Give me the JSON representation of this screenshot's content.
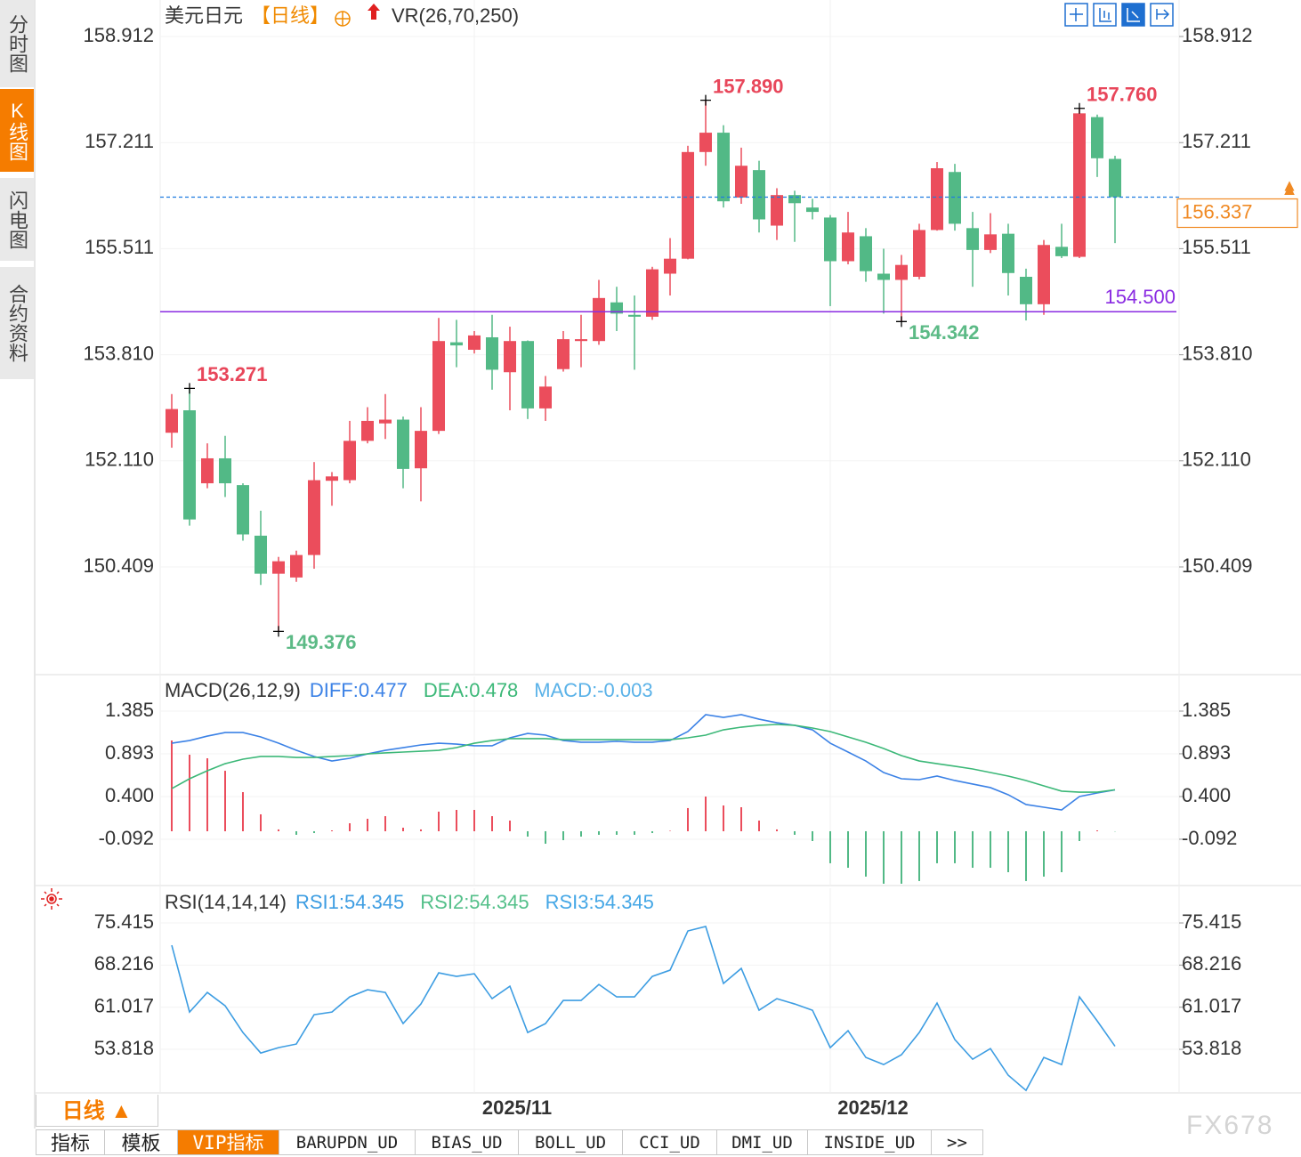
{
  "sidebar": [
    "分时图",
    "K线图",
    "闪电图",
    "合约资料"
  ],
  "header": {
    "title": "美元日元",
    "period": "【日线】",
    "indicator": "VR(26,70,250)"
  },
  "period_button": "日线 ▲",
  "tabs": [
    "指标",
    "模板",
    "VIP指标",
    "BARUPDN_UD",
    "BIAS_UD",
    "BOLL_UD",
    "CCI_UD",
    "DMI_UD",
    "INSIDE_UD",
    ">>"
  ],
  "watermark": "FX678",
  "chart_data": [
    {
      "type": "candlestick",
      "categories": [
        null,
        null,
        null,
        null,
        null,
        null,
        null,
        null,
        null,
        null,
        null,
        null,
        null,
        null,
        null,
        null,
        null,
        "2025/11",
        null,
        null,
        null,
        null,
        null,
        null,
        null,
        null,
        null,
        null,
        null,
        null,
        null,
        null,
        null,
        null,
        null,
        null,
        null,
        "2025/12",
        null,
        null,
        null,
        null,
        null,
        null,
        null,
        null,
        null,
        null,
        null,
        null,
        null,
        null,
        null,
        null
      ],
      "open": [
        152.56,
        152.92,
        151.75,
        152.15,
        151.72,
        150.91,
        150.3,
        150.24,
        150.6,
        151.79,
        151.8,
        152.43,
        152.71,
        152.77,
        151.99,
        152.59,
        154.01,
        153.89,
        154.09,
        153.53,
        154.03,
        152.95,
        153.58,
        154.03,
        154.03,
        154.65,
        154.45,
        154.42,
        155.11,
        155.35,
        157.06,
        157.37,
        156.33,
        156.77,
        155.88,
        156.37,
        156.17,
        156.01,
        155.31,
        155.71,
        155.11,
        155.01,
        155.06,
        155.81,
        156.74,
        155.84,
        155.49,
        155.75,
        155.06,
        154.62,
        155.54,
        155.38,
        157.62,
        156.95
      ],
      "high": [
        153.18,
        153.271,
        152.39,
        152.51,
        151.75,
        151.31,
        150.57,
        150.67,
        152.09,
        151.93,
        152.75,
        152.97,
        153.18,
        152.82,
        152.97,
        154.4,
        154.37,
        154.19,
        154.45,
        154.26,
        154.04,
        153.47,
        154.19,
        154.45,
        155.01,
        154.9,
        154.76,
        155.22,
        155.68,
        157.16,
        157.89,
        157.49,
        157.13,
        156.92,
        156.48,
        156.44,
        156.31,
        156.05,
        156.1,
        155.84,
        155.51,
        155.41,
        155.91,
        156.9,
        156.87,
        156.1,
        156.08,
        155.91,
        155.19,
        155.65,
        155.91,
        157.76,
        157.66,
        157.0
      ],
      "low": [
        152.32,
        151.07,
        151.67,
        151.53,
        150.83,
        150.12,
        149.376,
        150.17,
        150.38,
        151.39,
        151.75,
        152.39,
        152.46,
        151.67,
        151.46,
        152.54,
        153.61,
        153.83,
        153.25,
        152.92,
        152.78,
        152.75,
        153.54,
        153.61,
        153.97,
        154.19,
        153.57,
        154.37,
        154.76,
        155.34,
        156.84,
        156.17,
        156.23,
        155.77,
        155.65,
        155.62,
        155.98,
        154.59,
        155.26,
        154.98,
        154.47,
        154.342,
        155.02,
        155.8,
        155.8,
        154.9,
        155.44,
        154.76,
        154.36,
        154.45,
        155.36,
        155.36,
        156.66,
        155.6
      ],
      "close": [
        152.94,
        151.17,
        152.15,
        151.75,
        150.93,
        150.3,
        150.5,
        150.6,
        151.8,
        151.86,
        152.43,
        152.75,
        152.77,
        151.98,
        152.59,
        154.03,
        153.96,
        154.12,
        153.57,
        154.03,
        152.95,
        153.3,
        154.06,
        154.06,
        154.72,
        154.47,
        154.42,
        155.18,
        155.35,
        157.06,
        157.37,
        156.27,
        156.84,
        155.98,
        156.37,
        156.24,
        156.1,
        155.31,
        155.77,
        155.15,
        155.01,
        155.25,
        155.81,
        156.8,
        155.91,
        155.49,
        155.74,
        155.12,
        154.62,
        155.57,
        155.39,
        157.68,
        156.96,
        156.337
      ],
      "up_color": "#eb4d5c",
      "down_color": "#52b986",
      "up_label_color": "#e8465a",
      "down_label_color": "#5cba86",
      "ylim": [
        148.697,
        159.497
      ],
      "yticks": [
        158.912,
        157.211,
        155.511,
        {
          "value": 153.81,
          "label": "153.810"
        },
        {
          "value": 152.11,
          "label": "152.110"
        },
        150.409
      ],
      "grid": true,
      "last_price": 156.337,
      "last_price_color": "#f08a24",
      "last_line_color": "#1e7be0",
      "level_line": {
        "value": 154.5,
        "label": "154.500",
        "color": "#8a2be2"
      },
      "high_labels": [
        153.271,
        {
          "value": 157.89,
          "label": "157.890"
        },
        {
          "value": 157.76,
          "label": "157.760"
        }
      ],
      "low_labels": [
        149.376,
        154.342
      ]
    },
    {
      "type": "macd",
      "title": "MACD(26,12,9)",
      "up_color": "#eb4d5c",
      "down_color": "#52b986",
      "ylim": [
        -0.626,
        1.785
      ],
      "yticks": [
        1.385,
        0.893,
        {
          "value": 0.4,
          "label": "0.400"
        },
        -0.092
      ],
      "grid": true,
      "series": [
        {
          "name": "DIFF:0.477",
          "color": "#3c82e6",
          "values": [
            1.015,
            1.046,
            1.097,
            1.138,
            1.138,
            1.087,
            1.015,
            0.933,
            0.862,
            0.81,
            0.841,
            0.892,
            0.933,
            0.964,
            0.995,
            1.015,
            1.005,
            0.985,
            0.985,
            1.077,
            1.128,
            1.108,
            1.046,
            1.026,
            1.026,
            1.036,
            1.026,
            1.026,
            1.046,
            1.149,
            1.344,
            1.313,
            1.344,
            1.292,
            1.251,
            1.221,
            1.169,
            1.015,
            0.913,
            0.81,
            0.677,
            0.605,
            0.595,
            0.636,
            0.585,
            0.544,
            0.503,
            0.421,
            0.308,
            0.277,
            0.246,
            0.4,
            0.441,
            0.477
          ]
        },
        {
          "name": "DEA:0.478",
          "color": "#3cb878",
          "values": [
            0.492,
            0.605,
            0.697,
            0.779,
            0.831,
            0.862,
            0.862,
            0.851,
            0.851,
            0.862,
            0.872,
            0.892,
            0.903,
            0.913,
            0.923,
            0.933,
            0.964,
            1.015,
            1.046,
            1.067,
            1.067,
            1.067,
            1.056,
            1.056,
            1.056,
            1.056,
            1.056,
            1.056,
            1.056,
            1.077,
            1.108,
            1.169,
            1.2,
            1.221,
            1.231,
            1.221,
            1.19,
            1.149,
            1.087,
            1.026,
            0.954,
            0.872,
            0.81,
            0.779,
            0.749,
            0.718,
            0.677,
            0.636,
            0.585,
            0.523,
            0.462,
            0.451,
            0.451,
            0.478
          ]
        },
        {
          "name": "MACD:-0.003",
          "color": "#5ab2e8",
          "bars": true,
          "values": [
            1.046,
            0.882,
            0.841,
            0.697,
            0.451,
            0.195,
            0.021,
            -0.041,
            -0.021,
            0.01,
            0.092,
            0.144,
            0.174,
            0.041,
            0.021,
            0.226,
            0.246,
            0.246,
            0.174,
            0.123,
            -0.062,
            -0.144,
            -0.103,
            -0.062,
            -0.041,
            -0.041,
            -0.041,
            -0.021,
            0.005,
            0.267,
            0.4,
            0.297,
            0.277,
            0.123,
            0.021,
            -0.041,
            -0.113,
            -0.369,
            -0.421,
            -0.523,
            -0.605,
            -0.605,
            -0.574,
            -0.369,
            -0.369,
            -0.421,
            -0.421,
            -0.472,
            -0.574,
            -0.523,
            -0.472,
            -0.113,
            0.01,
            -0.003
          ]
        }
      ]
    },
    {
      "type": "rsi",
      "title": "RSI(14,14,14)",
      "ylim": [
        46.37,
        81.35
      ],
      "yticks": [
        75.415,
        68.216,
        61.017,
        53.818
      ],
      "grid": true,
      "series": [
        {
          "name": "RSI1:54.345",
          "color": "#3d9de2",
          "values": [
            71.61,
            60.19,
            63.54,
            61.26,
            56.69,
            53.19,
            54.11,
            54.72,
            59.74,
            60.19,
            62.78,
            64.0,
            63.54,
            58.22,
            61.57,
            66.89,
            66.28,
            66.74,
            62.48,
            64.61,
            56.69,
            58.22,
            62.17,
            62.17,
            64.91,
            62.78,
            62.78,
            66.28,
            67.35,
            74.05,
            74.81,
            65.07,
            67.65,
            60.5,
            62.48,
            61.57,
            60.5,
            54.11,
            57.0,
            52.43,
            51.21,
            52.89,
            56.69,
            61.72,
            55.48,
            52.13,
            53.95,
            49.39,
            46.8,
            52.43,
            51.21,
            62.78,
            58.67,
            54.345
          ]
        },
        {
          "name": "RSI2:54.345",
          "color": "#54c08a"
        },
        {
          "name": "RSI3:54.345",
          "color": "#45a7e6"
        }
      ]
    }
  ]
}
